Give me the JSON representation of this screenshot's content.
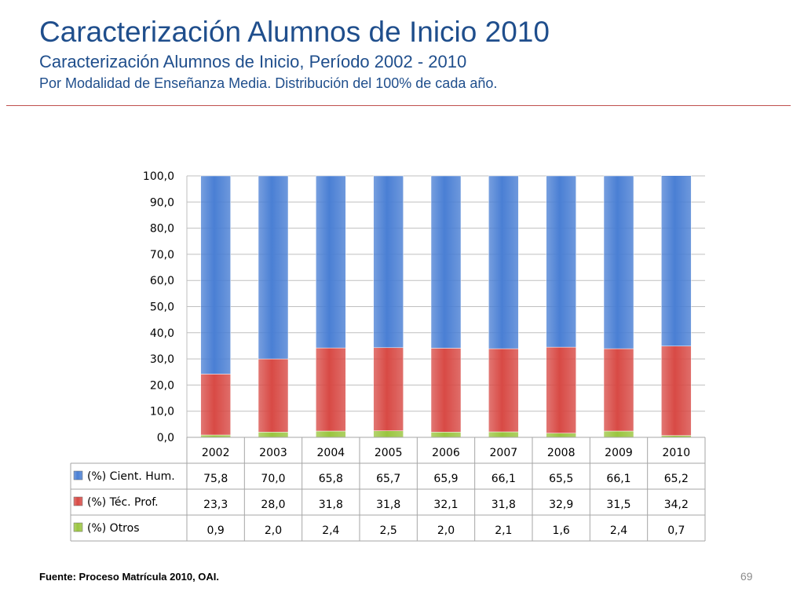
{
  "header": {
    "title": "Caracterización Alumnos de Inicio 2010",
    "subtitle": "Caracterización Alumnos de Inicio, Período 2002 - 2010",
    "subtitle2": "Por Modalidad de Enseñanza Media. Distribución del 100% de cada año."
  },
  "footer": {
    "source": "Fuente: Proceso Matrícula 2010, OAI.",
    "page_number": "69"
  },
  "colors": {
    "accent_rule": "#c0504d",
    "title": "#1f4e8c",
    "series_1": "#4a7fd4",
    "series_2": "#d84a45",
    "series_3": "#9ac53f"
  },
  "chart_data": {
    "type": "bar",
    "stacked": true,
    "categories": [
      "2002",
      "2003",
      "2004",
      "2005",
      "2006",
      "2007",
      "2008",
      "2009",
      "2010"
    ],
    "series": [
      {
        "name": "(%) Otros",
        "values": [
          0.9,
          2.0,
          2.4,
          2.5,
          2.0,
          2.1,
          1.6,
          2.4,
          0.7
        ],
        "value_labels": [
          "0,9",
          "2,0",
          "2,4",
          "2,5",
          "2,0",
          "2,1",
          "1,6",
          "2,4",
          "0,7"
        ]
      },
      {
        "name": "(%) Téc. Prof.",
        "values": [
          23.3,
          28.0,
          31.8,
          31.8,
          32.1,
          31.8,
          32.9,
          31.5,
          34.2
        ],
        "value_labels": [
          "23,3",
          "28,0",
          "31,8",
          "31,8",
          "32,1",
          "31,8",
          "32,9",
          "31,5",
          "34,2"
        ]
      },
      {
        "name": "(%) Cient. Hum.",
        "values": [
          75.8,
          70.0,
          65.8,
          65.7,
          65.9,
          66.1,
          65.5,
          66.1,
          65.2
        ],
        "value_labels": [
          "75,8",
          "70,0",
          "65,8",
          "65,7",
          "65,9",
          "66,1",
          "65,5",
          "66,1",
          "65,2"
        ]
      }
    ],
    "table_row_order": [
      "(%) Cient. Hum.",
      "(%) Téc. Prof.",
      "(%) Otros"
    ],
    "ylim": [
      0,
      100
    ],
    "yticks": [
      "0,0",
      "10,0",
      "20,0",
      "30,0",
      "40,0",
      "50,0",
      "60,0",
      "70,0",
      "80,0",
      "90,0",
      "100,0"
    ],
    "grid": true,
    "legend": "data-table"
  }
}
